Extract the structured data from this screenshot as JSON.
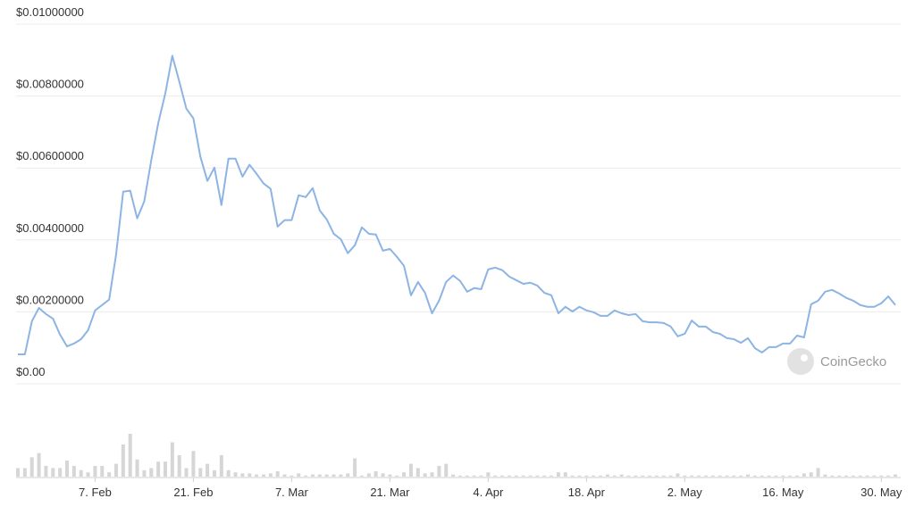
{
  "chart_data": {
    "type": "line",
    "x": [
      "27. Jan",
      "28. Jan",
      "29. Jan",
      "30. Jan",
      "31. Jan",
      "1. Feb",
      "2. Feb",
      "3. Feb",
      "4. Feb",
      "5. Feb",
      "6. Feb",
      "7. Feb",
      "8. Feb",
      "9. Feb",
      "10. Feb",
      "11. Feb",
      "12. Feb",
      "13. Feb",
      "14. Feb",
      "15. Feb",
      "16. Feb",
      "17. Feb",
      "18. Feb",
      "19. Feb",
      "20. Feb",
      "21. Feb",
      "22. Feb",
      "23. Feb",
      "24. Feb",
      "25. Feb",
      "26. Feb",
      "27. Feb",
      "28. Feb",
      "1. Mar",
      "2. Mar",
      "3. Mar",
      "4. Mar",
      "5. Mar",
      "6. Mar",
      "7. Mar",
      "8. Mar",
      "9. Mar",
      "10. Mar",
      "11. Mar",
      "12. Mar",
      "13. Mar",
      "14. Mar",
      "15. Mar",
      "16. Mar",
      "17. Mar",
      "18. Mar",
      "19. Mar",
      "20. Mar",
      "21. Mar",
      "22. Mar",
      "23. Mar",
      "24. Mar",
      "25. Mar",
      "26. Mar",
      "27. Mar",
      "28. Mar",
      "29. Mar",
      "30. Mar",
      "31. Mar",
      "1. Apr",
      "2. Apr",
      "3. Apr",
      "4. Apr",
      "5. Apr",
      "6. Apr",
      "7. Apr",
      "8. Apr",
      "9. Apr",
      "10. Apr",
      "11. Apr",
      "12. Apr",
      "13. Apr",
      "14. Apr",
      "15. Apr",
      "16. Apr",
      "17. Apr",
      "18. Apr",
      "19. Apr",
      "20. Apr",
      "21. Apr",
      "22. Apr",
      "23. Apr",
      "24. Apr",
      "25. Apr",
      "26. Apr",
      "27. Apr",
      "28. Apr",
      "29. Apr",
      "30. Apr",
      "1. May",
      "2. May",
      "3. May",
      "4. May",
      "5. May",
      "6. May",
      "7. May",
      "8. May",
      "9. May",
      "10. May",
      "11. May",
      "12. May",
      "13. May",
      "14. May",
      "15. May",
      "16. May",
      "17. May",
      "18. May",
      "19. May",
      "20. May",
      "21. May",
      "22. May",
      "23. May",
      "24. May",
      "25. May",
      "26. May",
      "27. May",
      "28. May",
      "29. May",
      "30. May",
      "31. May",
      "1. Jun"
    ],
    "series": [
      {
        "color": "#8cb4e4",
        "values": [
          0.00082,
          0.00082,
          0.00174,
          0.00211,
          0.00194,
          0.00181,
          0.00137,
          0.00104,
          0.00112,
          0.00124,
          0.00149,
          0.00204,
          0.00219,
          0.00234,
          0.0036,
          0.00534,
          0.00537,
          0.0046,
          0.00507,
          0.00621,
          0.00725,
          0.00807,
          0.00912,
          0.0084,
          0.00765,
          0.00738,
          0.00631,
          0.00564,
          0.00601,
          0.00497,
          0.00626,
          0.00626,
          0.00576,
          0.00609,
          0.00584,
          0.00557,
          0.00542,
          0.00437,
          0.00455,
          0.00455,
          0.00524,
          0.00519,
          0.00544,
          0.00482,
          0.00457,
          0.00417,
          0.00402,
          0.00363,
          0.00385,
          0.00435,
          0.00417,
          0.00415,
          0.0037,
          0.00375,
          0.00353,
          0.00328,
          0.00246,
          0.00283,
          0.00253,
          0.00196,
          0.00231,
          0.00283,
          0.00301,
          0.00286,
          0.00256,
          0.00266,
          0.00263,
          0.00318,
          0.00323,
          0.00316,
          0.00298,
          0.00288,
          0.00278,
          0.00281,
          0.00273,
          0.00253,
          0.00246,
          0.00196,
          0.00214,
          0.00201,
          0.00214,
          0.00204,
          0.00199,
          0.00189,
          0.00189,
          0.00204,
          0.00196,
          0.00191,
          0.00194,
          0.00174,
          0.00171,
          0.00171,
          0.00169,
          0.00159,
          0.00132,
          0.00139,
          0.00176,
          0.00159,
          0.00159,
          0.00144,
          0.00139,
          0.00127,
          0.00124,
          0.00114,
          0.00127,
          0.00099,
          0.00087,
          0.00102,
          0.00102,
          0.00112,
          0.00112,
          0.00134,
          0.00129,
          0.00221,
          0.00231,
          0.00256,
          0.00261,
          0.00251,
          0.00239,
          0.00231,
          0.00219,
          0.00214,
          0.00214,
          0.00224,
          0.00243,
          0.00219
        ]
      }
    ],
    "volume": {
      "color": "#d6d6d6",
      "values": [
        8,
        8,
        18,
        22,
        10,
        8,
        8,
        15,
        10,
        6,
        4,
        10,
        10,
        4,
        12,
        30,
        40,
        16,
        6,
        8,
        14,
        14,
        32,
        20,
        8,
        24,
        8,
        12,
        6,
        20,
        6,
        4,
        3,
        3,
        2,
        2,
        3,
        5,
        2,
        1,
        3,
        1,
        2,
        2,
        2,
        2,
        2,
        3,
        17,
        1,
        3,
        5,
        3,
        2,
        1,
        4,
        12,
        8,
        3,
        4,
        10,
        12,
        2,
        1,
        1,
        1,
        1,
        4,
        1,
        1,
        1,
        1,
        1,
        1,
        1,
        1,
        1,
        4,
        4,
        1,
        1,
        1,
        1,
        1,
        2,
        1,
        2,
        1,
        1,
        1,
        1,
        1,
        1,
        1,
        3,
        1,
        1,
        1,
        1,
        1,
        1,
        1,
        1,
        1,
        2,
        1,
        1,
        1,
        1,
        1,
        1,
        1,
        3,
        4,
        8,
        2,
        1,
        1,
        1,
        1,
        1,
        1,
        1,
        1,
        1,
        2
      ]
    },
    "ylim": [
      0,
      0.01
    ],
    "yticks": [
      {
        "value": 0,
        "label": "$0.00"
      },
      {
        "value": 0.002,
        "label": "$0.00200000"
      },
      {
        "value": 0.004,
        "label": "$0.00400000"
      },
      {
        "value": 0.006,
        "label": "$0.00600000"
      },
      {
        "value": 0.008,
        "label": "$0.00800000"
      },
      {
        "value": 0.01,
        "label": "$0.01000000"
      }
    ],
    "xticks": [
      "7. Feb",
      "21. Feb",
      "7. Mar",
      "21. Mar",
      "4. Apr",
      "18. Apr",
      "2. May",
      "16. May",
      "30. May"
    ],
    "grid": true,
    "watermark": "CoinGecko"
  }
}
